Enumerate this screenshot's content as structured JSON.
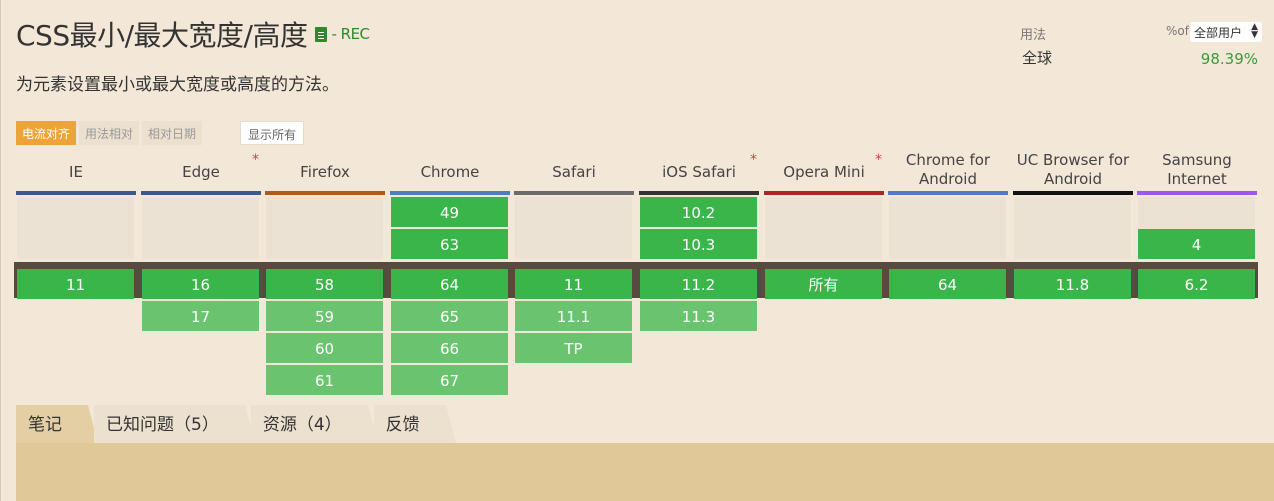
{
  "feature": {
    "title": "CSS最小/最大宽度/高度",
    "status": "- REC",
    "doc_icon": "document-icon",
    "description": "为元素设置最小或最大宽度或高度的方法。"
  },
  "usage": {
    "label": "用法",
    "region": "全球",
    "pct_of": "%of",
    "user_select": "全部用户",
    "value": "98.39%"
  },
  "view_tabs": [
    "电流对齐",
    "用法相对",
    "相对日期"
  ],
  "show_all": "显示所有",
  "browsers": [
    {
      "name": "IE",
      "bar": "#3a5a8c",
      "star": "",
      "rows": [
        "",
        "",
        "11",
        "",
        "",
        ""
      ]
    },
    {
      "name": "Edge",
      "bar": "#3a5a8c",
      "star": "*",
      "rows": [
        "",
        "",
        "16",
        "17",
        "",
        ""
      ]
    },
    {
      "name": "Firefox",
      "bar": "#b05a1a",
      "star": "",
      "rows": [
        "",
        "",
        "58",
        "59",
        "60",
        "61"
      ]
    },
    {
      "name": "Chrome",
      "bar": "#4d7dbf",
      "star": "",
      "rows": [
        "49",
        "63",
        "64",
        "65",
        "66",
        "67"
      ]
    },
    {
      "name": "Safari",
      "bar": "#6b6b6b",
      "star": "",
      "rows": [
        "",
        "",
        "11",
        "11.1",
        "TP",
        ""
      ]
    },
    {
      "name": "iOS Safari",
      "bar": "#333333",
      "star": "*",
      "rows": [
        "10.2",
        "10.3",
        "11.2",
        "11.3",
        "",
        ""
      ]
    },
    {
      "name": "Opera Mini",
      "bar": "#a82828",
      "star": "*",
      "rows": [
        "",
        "",
        "所有",
        "",
        "",
        ""
      ]
    },
    {
      "name": "Chrome for Android",
      "bar": "#4d7dbf",
      "star": "",
      "rows": [
        "",
        "",
        "64",
        "",
        "",
        ""
      ]
    },
    {
      "name": "UC Browser for Android",
      "bar": "#111111",
      "star": "",
      "rows": [
        "",
        "",
        "11.8",
        "",
        "",
        ""
      ]
    },
    {
      "name": "Samsung Internet",
      "bar": "#9b59e6",
      "star": "",
      "rows": [
        "",
        "4",
        "6.2",
        "",
        "",
        ""
      ]
    }
  ],
  "bottom_tabs": [
    "笔记",
    "已知问题（5）",
    "资源（4）",
    "反馈"
  ],
  "colors": {
    "supported": "#39b54a",
    "future": "#6ac46f",
    "accent": "#eba33a"
  }
}
